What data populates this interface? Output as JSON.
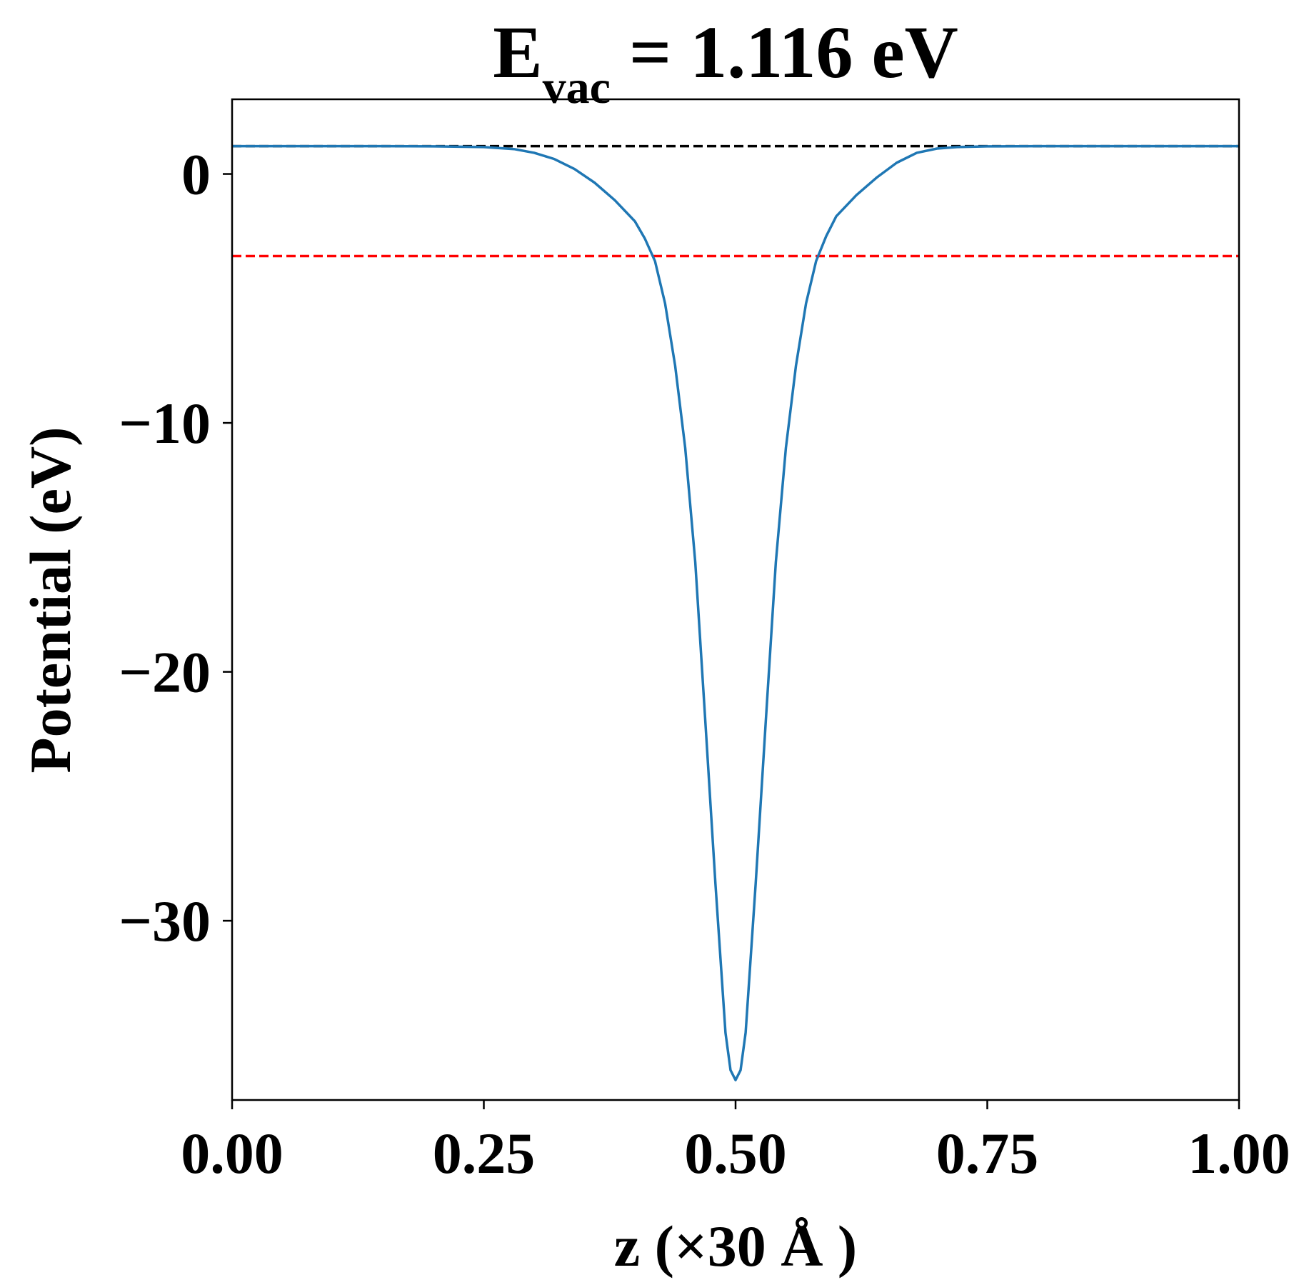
{
  "chart_data": {
    "type": "line",
    "title": {
      "main": "E",
      "subscript": "vac",
      "rest": " = 1.116 eV"
    },
    "xlabel": "z (×30 Å )",
    "ylabel": "Potential (eV)",
    "xlim": [
      0.0,
      1.0
    ],
    "ylim": [
      -37.2,
      3.0
    ],
    "xticks": [
      {
        "value": 0.0,
        "label": "0.00"
      },
      {
        "value": 0.25,
        "label": "0.25"
      },
      {
        "value": 0.5,
        "label": "0.50"
      },
      {
        "value": 0.75,
        "label": "0.75"
      },
      {
        "value": 1.0,
        "label": "1.00"
      }
    ],
    "yticks": [
      {
        "value": 0,
        "label": "0"
      },
      {
        "value": -10,
        "label": "−10"
      },
      {
        "value": -20,
        "label": "−20"
      },
      {
        "value": -30,
        "label": "−30"
      }
    ],
    "grid": false,
    "reference_lines": [
      {
        "y": 1.116,
        "color": "#000000",
        "style": "dashed"
      },
      {
        "y": -3.3,
        "color": "#ff0000",
        "style": "dashed"
      }
    ],
    "series": [
      {
        "color": "#1f77b4",
        "x": [
          0.0,
          0.05,
          0.1,
          0.15,
          0.2,
          0.25,
          0.28,
          0.3,
          0.32,
          0.34,
          0.36,
          0.38,
          0.4,
          0.41,
          0.42,
          0.43,
          0.44,
          0.45,
          0.46,
          0.47,
          0.48,
          0.49,
          0.495,
          0.5,
          0.505,
          0.51,
          0.52,
          0.53,
          0.54,
          0.55,
          0.56,
          0.57,
          0.58,
          0.59,
          0.6,
          0.62,
          0.64,
          0.66,
          0.68,
          0.7,
          0.72,
          0.75,
          0.8,
          0.85,
          0.9,
          0.95,
          1.0
        ],
        "y": [
          1.116,
          1.116,
          1.116,
          1.116,
          1.11,
          1.08,
          1.0,
          0.85,
          0.6,
          0.2,
          -0.35,
          -1.05,
          -1.9,
          -2.6,
          -3.5,
          -5.2,
          -7.7,
          -11.0,
          -15.6,
          -22.0,
          -28.5,
          -34.5,
          -36.0,
          -36.4,
          -36.0,
          -34.5,
          -28.5,
          -22.0,
          -15.6,
          -11.0,
          -7.7,
          -5.2,
          -3.5,
          -2.5,
          -1.7,
          -0.85,
          -0.15,
          0.45,
          0.85,
          1.02,
          1.08,
          1.11,
          1.116,
          1.116,
          1.116,
          1.116,
          1.116
        ]
      }
    ]
  }
}
